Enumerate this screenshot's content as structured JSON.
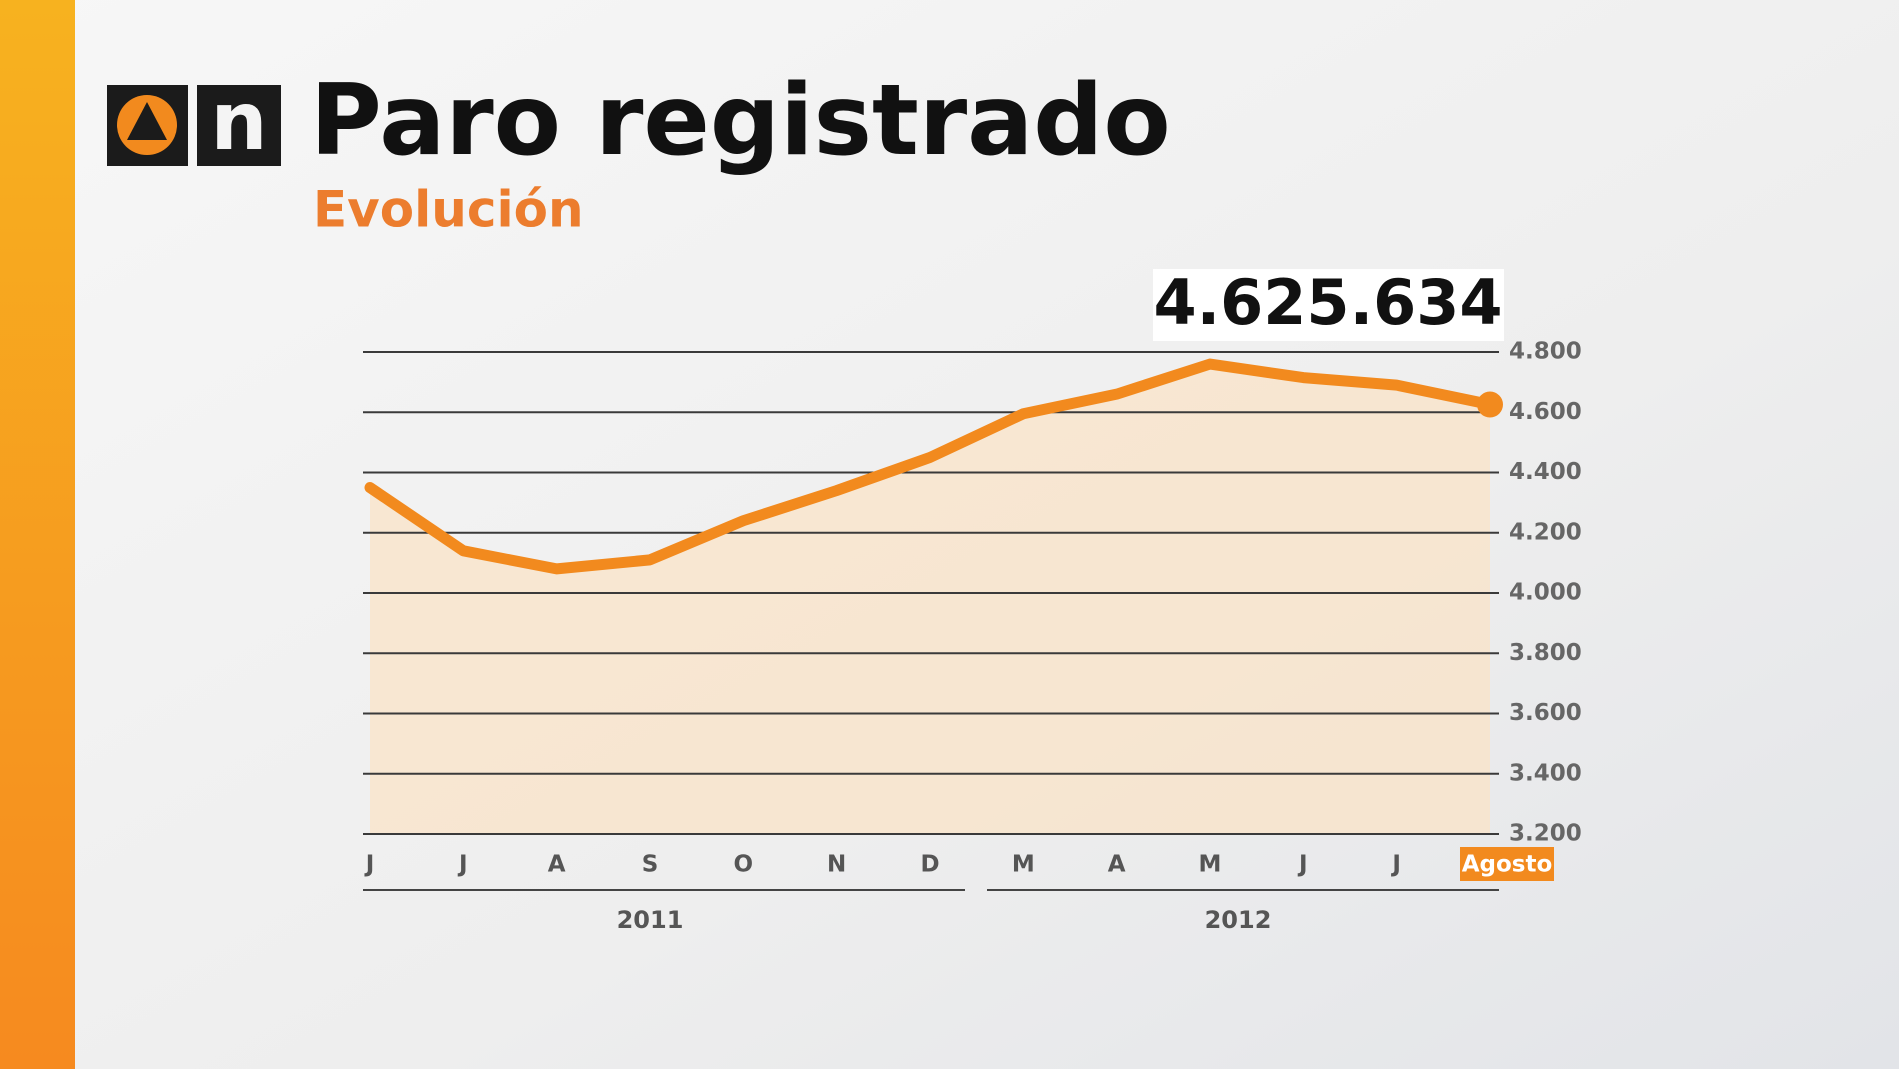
{
  "header": {
    "brand": "n",
    "title": "Paro registrado",
    "subtitle": "Evolución"
  },
  "chart_data": {
    "type": "line",
    "categories": [
      "J",
      "J",
      "A",
      "S",
      "O",
      "N",
      "D",
      "M",
      "A",
      "M",
      "J",
      "J",
      "Agosto"
    ],
    "x_groups": [
      {
        "label": "2011"
      },
      {
        "label": "2012"
      }
    ],
    "series": [
      {
        "color": "#f28a1e",
        "values": [
          4350,
          4140,
          4080,
          4110,
          4240,
          4340,
          4450,
          4595,
          4660,
          4760,
          4715,
          4690,
          4625.634
        ],
        "value_labels": [
          null,
          null,
          null,
          null,
          null,
          null,
          null,
          null,
          null,
          null,
          null,
          null,
          "4.625.634"
        ]
      }
    ],
    "ylim": [
      3200,
      4800
    ],
    "yticks": [
      {
        "value": 3200,
        "label": "3.200"
      },
      {
        "value": 3400,
        "label": "3.400"
      },
      {
        "value": 3600,
        "label": "3.600"
      },
      {
        "value": 3800,
        "label": "3.800"
      },
      {
        "value": 4000,
        "label": "4.000"
      },
      {
        "value": 4200,
        "label": "4.200"
      },
      {
        "value": 4400,
        "label": "4.400"
      },
      {
        "value": 4600,
        "label": "4.600"
      },
      {
        "value": 4800,
        "label": "4.800"
      }
    ],
    "grid": true
  }
}
